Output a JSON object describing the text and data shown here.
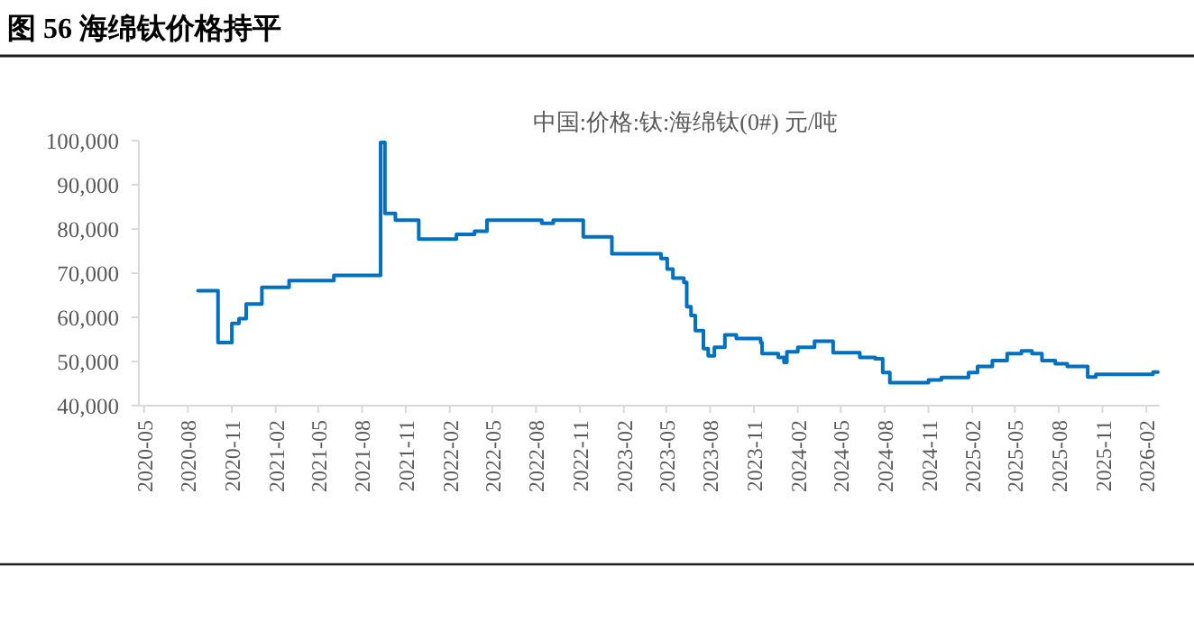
{
  "chart_data": {
    "type": "step",
    "title": "图 56 海绵钛价格持平",
    "subtitle": "中国:价格:钛:海绵钛(0#) 元/吨",
    "x": [
      "2020-08-22",
      "2020-10-03",
      "2020-11-01",
      "2020-11-16",
      "2020-12-01",
      "2021-01-03",
      "2021-03-01",
      "2021-06-03",
      "2021-09-09",
      "2021-09-18",
      "2021-10-10",
      "2021-11-28",
      "2022-02-15",
      "2022-03-25",
      "2022-04-20",
      "2022-08-13",
      "2022-09-06",
      "2022-11-08",
      "2023-01-07",
      "2023-04-20",
      "2023-05-03",
      "2023-05-15",
      "2023-06-07",
      "2023-06-13",
      "2023-06-22",
      "2023-07-01",
      "2023-07-18",
      "2023-07-28",
      "2023-08-10",
      "2023-09-01",
      "2023-09-25",
      "2023-11-15",
      "2023-11-18",
      "2023-12-22",
      "2024-01-03",
      "2024-01-09",
      "2024-02-01",
      "2024-03-07",
      "2024-04-15",
      "2024-06-10",
      "2024-07-12",
      "2024-07-28",
      "2024-08-12",
      "2024-11-01",
      "2024-11-28",
      "2025-01-24",
      "2025-02-12",
      "2025-03-15",
      "2025-04-15",
      "2025-05-15",
      "2025-06-06",
      "2025-06-27",
      "2025-07-25",
      "2025-08-19",
      "2025-10-01",
      "2025-10-18",
      "2026-02-15",
      "2026-02-25"
    ],
    "series": [
      {
        "color": "#0070c0",
        "values": [
          66000,
          54300,
          58600,
          59700,
          63000,
          66800,
          68300,
          69500,
          99600,
          83500,
          82000,
          77700,
          78800,
          79500,
          82000,
          81300,
          82000,
          78200,
          74400,
          73300,
          70900,
          68900,
          67900,
          62400,
          60400,
          57000,
          52900,
          51300,
          53200,
          56000,
          55200,
          54300,
          51800,
          50900,
          49800,
          52200,
          53200,
          54600,
          52000,
          50900,
          50600,
          47500,
          45200,
          45800,
          46400,
          47500,
          48900,
          50200,
          51800,
          52400,
          51800,
          50200,
          49500,
          48900,
          46500,
          47100,
          47600,
          47600
        ]
      }
    ],
    "xlim": [
      "2020-04-20",
      "2026-03-01"
    ],
    "xticks": [
      "2020-05",
      "2020-08",
      "2020-11",
      "2021-02",
      "2021-05",
      "2021-08",
      "2021-11",
      "2022-02",
      "2022-05",
      "2022-08",
      "2022-11",
      "2023-02",
      "2023-05",
      "2023-08",
      "2023-11",
      "2024-02",
      "2024-05",
      "2024-08",
      "2024-11",
      "2025-02",
      "2025-05",
      "2025-08",
      "2025-11",
      "2026-02"
    ],
    "ylim": [
      40000,
      100000
    ],
    "yticks": [
      {
        "value": 40000,
        "label": "40,000"
      },
      {
        "value": 50000,
        "label": "50,000"
      },
      {
        "value": 60000,
        "label": "60,000"
      },
      {
        "value": 70000,
        "label": "70,000"
      },
      {
        "value": 80000,
        "label": "80,000"
      },
      {
        "value": 90000,
        "label": "90,000"
      },
      {
        "value": 100000,
        "label": "100,000"
      }
    ],
    "grid": false
  }
}
